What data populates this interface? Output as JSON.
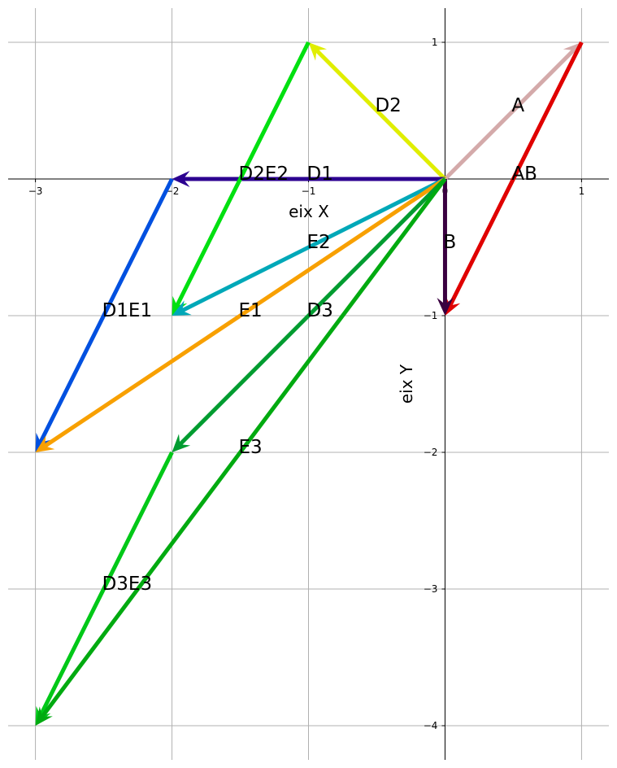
{
  "chart_data": {
    "type": "vector",
    "xlabel": "eix X",
    "ylabel": "eix Y",
    "xlim": [
      -3.2,
      1.2
    ],
    "ylim": [
      -4.25,
      1.25
    ],
    "grid": true,
    "x_ticks": [
      -3,
      -2,
      -1,
      0,
      1
    ],
    "y_ticks": [
      1,
      -1,
      -2,
      -3,
      -4
    ],
    "x_tick_labels": [
      "−3",
      "−2",
      "−1",
      "0",
      "1"
    ],
    "y_tick_labels": [
      "1",
      "−1",
      "−2",
      "−3",
      "−4"
    ],
    "vectors": [
      {
        "x0": 0,
        "y0": 0,
        "x1": 1,
        "y1": 1,
        "color": "#d4aaaa"
      },
      {
        "x0": 1,
        "y0": 1,
        "x1": 0,
        "y1": -1,
        "color": "#e00000"
      },
      {
        "x0": 0,
        "y0": 0,
        "x1": 0,
        "y1": -1,
        "color": "#3a0040"
      },
      {
        "x0": 0,
        "y0": 0,
        "x1": -1,
        "y1": 1,
        "color": "#e0ee00"
      },
      {
        "x0": 0,
        "y0": 0,
        "x1": -2,
        "y1": 0,
        "color": "#2c0090"
      },
      {
        "x0": -1,
        "y0": 1,
        "x1": -2,
        "y1": -1,
        "color": "#00e010"
      },
      {
        "x0": -2,
        "y0": 0,
        "x1": -3,
        "y1": -2,
        "color": "#0050e0"
      },
      {
        "x0": 0,
        "y0": 0,
        "x1": -2,
        "y1": -1,
        "color": "#00a8b8"
      },
      {
        "x0": 0,
        "y0": 0,
        "x1": -3,
        "y1": -2,
        "color": "#f8a000"
      },
      {
        "x0": 0,
        "y0": 0,
        "x1": -2,
        "y1": -2,
        "color": "#009c30"
      },
      {
        "x0": -2,
        "y0": -2,
        "x1": -3,
        "y1": -4,
        "color": "#00c818"
      },
      {
        "x0": 0,
        "y0": 0,
        "x1": -3,
        "y1": -4,
        "color": "#00aa10"
      }
    ],
    "labels": [
      {
        "text": "A",
        "x": 0.5,
        "y": 0.5
      },
      {
        "text": "AB",
        "x": 0.5,
        "y": 0
      },
      {
        "text": "B",
        "x": 0,
        "y": -0.5
      },
      {
        "text": "D2",
        "x": -0.5,
        "y": 0.5
      },
      {
        "text": "D1",
        "x": -1,
        "y": 0
      },
      {
        "text": "D2E2",
        "x": -1.5,
        "y": 0
      },
      {
        "text": "E2",
        "x": -1,
        "y": -0.5
      },
      {
        "text": "D1E1",
        "x": -2.5,
        "y": -1
      },
      {
        "text": "E1",
        "x": -1.5,
        "y": -1
      },
      {
        "text": "D3",
        "x": -1,
        "y": -1
      },
      {
        "text": "E3",
        "x": -1.5,
        "y": -2
      },
      {
        "text": "D3E3",
        "x": -2.5,
        "y": -3
      }
    ]
  }
}
